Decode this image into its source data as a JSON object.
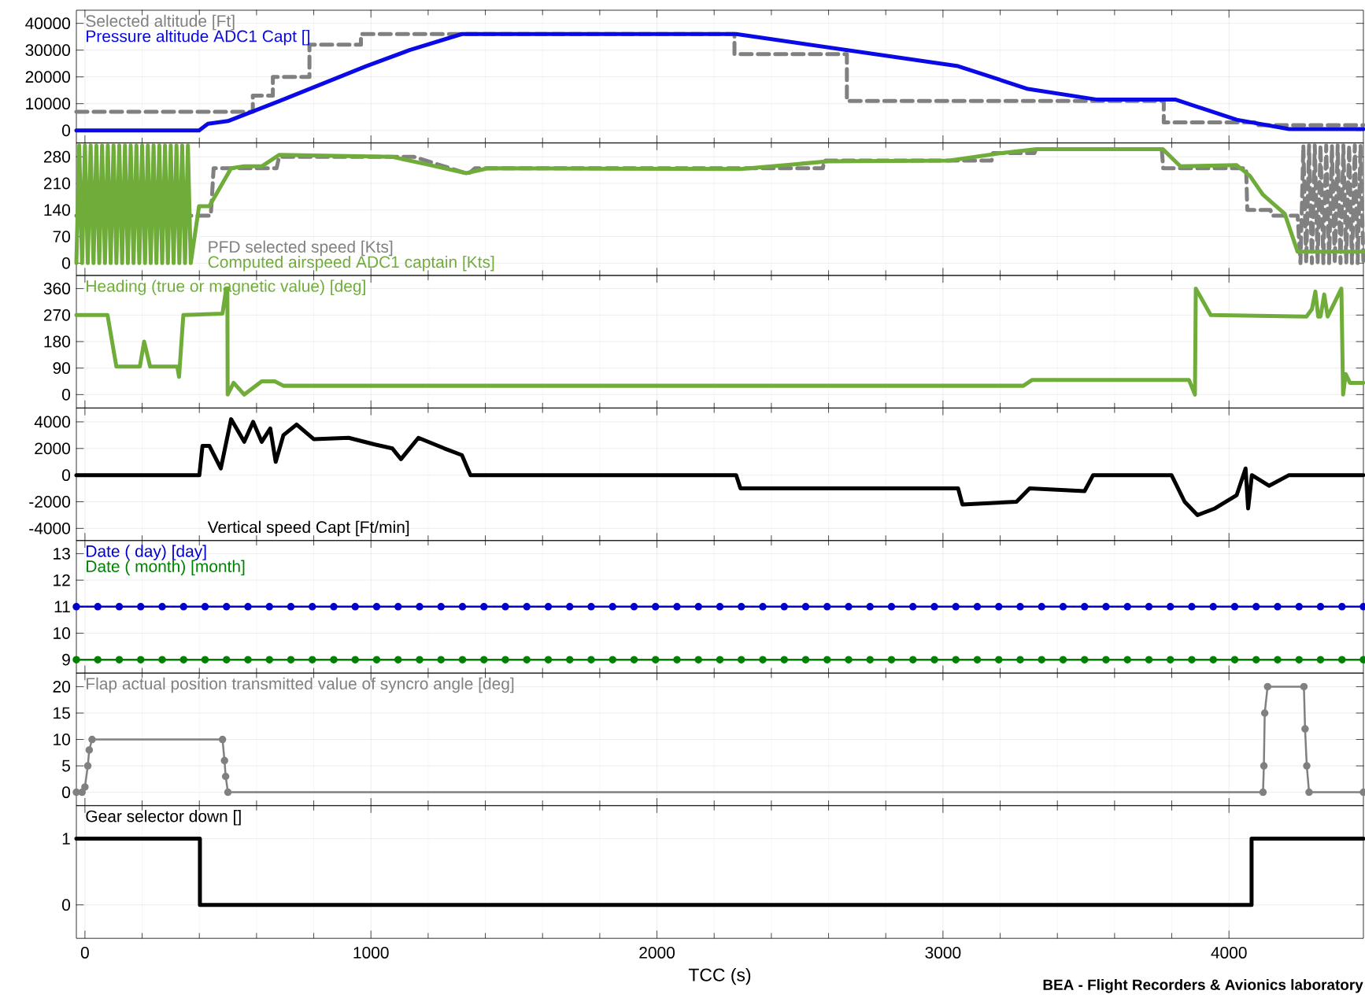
{
  "chart_data": [
    {
      "type": "line",
      "xlim": [
        -30,
        4470
      ],
      "xticks": [
        0,
        1000,
        2000,
        3000,
        4000
      ],
      "ylim": [
        -4600,
        44900
      ],
      "yticks": [
        0,
        10000,
        20000,
        30000,
        40000
      ],
      "tick_labels": "y",
      "grid": true,
      "legend": "top left",
      "series": [
        {
          "name": "Selected altitude [Ft]",
          "color": "#808080",
          "line_style": "dashed",
          "type": "step",
          "x": [
            -30,
            587,
            657,
            785,
            965,
            2271,
            2664,
            3772,
            4100,
            4470
          ],
          "values": [
            7000,
            13000,
            20000,
            32000,
            36000,
            28500,
            11000,
            3000,
            2000,
            2000
          ]
        },
        {
          "name": "Pressure altitude ADC1 Capt []",
          "color": "#0a0ae6",
          "x": [
            -30,
            399,
            430,
            500,
            680,
            983,
            1135,
            1318,
            2277,
            3053,
            3297,
            3540,
            3814,
            4027,
            4210,
            4470
          ],
          "values": [
            0,
            0,
            2500,
            3500,
            11000,
            24000,
            30000,
            36000,
            36000,
            24000,
            15500,
            11500,
            11500,
            4000,
            500,
            500
          ]
        }
      ]
    },
    {
      "type": "line",
      "xlim": [
        -30,
        4470
      ],
      "xticks": [
        0,
        1000,
        2000,
        3000,
        4000
      ],
      "ylim": [
        -32,
        317
      ],
      "yticks": [
        0,
        70,
        140,
        210,
        280
      ],
      "tick_labels": "y",
      "grid": true,
      "legend": "bottom left",
      "series": [
        {
          "name": "PFD selected speed [Kts]",
          "color": "#808080",
          "line_style": "dashed",
          "x": [
            -30,
            440,
            450,
            670,
            679,
            1150,
            1340,
            1364,
            2580,
            2585,
            3170,
            3175,
            3320,
            3325,
            3765,
            3770,
            4060,
            4064,
            4145,
            4150,
            4240,
            4250,
            4260,
            4270,
            4280,
            4290,
            4300,
            4310,
            4320,
            4330,
            4340,
            4350,
            4360,
            4370,
            4380,
            4390,
            4400,
            4410,
            4420,
            4430,
            4440,
            4450,
            4460,
            4470
          ],
          "values": [
            125,
            125,
            250,
            250,
            280,
            280,
            235,
            250,
            250,
            270,
            270,
            290,
            290,
            300,
            300,
            250,
            250,
            140,
            140,
            125,
            125,
            0,
            310,
            0,
            310,
            0,
            310,
            0,
            310,
            0,
            310,
            0,
            310,
            0,
            310,
            0,
            310,
            0,
            310,
            0,
            310,
            0,
            310,
            0
          ]
        },
        {
          "name": "Computed airspeed ADC1 captain [Kts]",
          "color": "#6fac3a",
          "x": [
            -30,
            -20,
            -10,
            0,
            10,
            20,
            30,
            40,
            50,
            60,
            70,
            80,
            90,
            100,
            110,
            120,
            130,
            140,
            150,
            160,
            170,
            180,
            190,
            200,
            210,
            220,
            230,
            240,
            250,
            260,
            270,
            280,
            290,
            300,
            310,
            320,
            330,
            340,
            350,
            360,
            370,
            399,
            435,
            511,
            557,
            618,
            679,
            1075,
            1196,
            1333,
            1409,
            2292,
            2597,
            3023,
            3205,
            3327,
            3769,
            3830,
            4027,
            4073,
            4119,
            4195,
            4240,
            4470
          ],
          "values": [
            0,
            310,
            0,
            310,
            0,
            310,
            0,
            310,
            0,
            310,
            0,
            310,
            0,
            310,
            0,
            310,
            0,
            310,
            0,
            310,
            0,
            310,
            0,
            310,
            0,
            310,
            0,
            310,
            0,
            310,
            0,
            310,
            0,
            310,
            0,
            310,
            0,
            310,
            0,
            310,
            0,
            150,
            150,
            250,
            255,
            255,
            285,
            280,
            260,
            237,
            250,
            248,
            268,
            270,
            290,
            300,
            300,
            255,
            258,
            230,
            180,
            130,
            30,
            30
          ]
        }
      ]
    },
    {
      "type": "line",
      "xlim": [
        -30,
        4470
      ],
      "xticks": [
        0,
        1000,
        2000,
        3000,
        4000
      ],
      "ylim": [
        -45,
        405
      ],
      "yticks": [
        0,
        90,
        180,
        270,
        360
      ],
      "tick_labels": "y",
      "grid": true,
      "legend": "top left",
      "series": [
        {
          "name": "Heading (true or magnetic value) [deg]",
          "color": "#6fac3a",
          "x": [
            -30,
            79,
            110,
            192,
            207,
            228,
            323,
            329,
            344,
            481,
            494,
            498,
            499,
            520,
            557,
            618,
            664,
            694,
            3281,
            3312,
            3860,
            3881,
            3884,
            3936,
            4271,
            4290,
            4302,
            4312,
            4320,
            4333,
            4345,
            4393,
            4399,
            4408,
            4423,
            4470
          ],
          "values": [
            270,
            270,
            95,
            95,
            180,
            95,
            95,
            60,
            270,
            275,
            360,
            360,
            0,
            40,
            0,
            45,
            45,
            30,
            30,
            50,
            50,
            0,
            360,
            270,
            265,
            290,
            350,
            265,
            265,
            340,
            265,
            360,
            0,
            70,
            40,
            40
          ]
        }
      ]
    },
    {
      "type": "line",
      "xlim": [
        -30,
        4470
      ],
      "xticks": [
        0,
        1000,
        2000,
        3000,
        4000
      ],
      "ylim": [
        -4900,
        5050
      ],
      "yticks": [
        -4000,
        -2000,
        0,
        2000,
        4000
      ],
      "tick_labels": "y",
      "grid": true,
      "legend": "bottom left",
      "series": [
        {
          "name": "Vertical speed Capt [Ft/min]",
          "color": "#000000",
          "x": [
            -30,
            400,
            411,
            435,
            475,
            511,
            557,
            588,
            618,
            648,
            667,
            694,
            740,
            800,
            922,
            1014,
            1075,
            1105,
            1166,
            1257,
            1318,
            1348,
            2277,
            2292,
            3053,
            3068,
            3257,
            3303,
            3495,
            3525,
            3799,
            3845,
            3890,
            3951,
            4027,
            4058,
            4067,
            4080,
            4140,
            4210,
            4470
          ],
          "values": [
            0,
            0,
            2200,
            2200,
            500,
            4200,
            2500,
            4000,
            2500,
            3500,
            1000,
            3000,
            3800,
            2700,
            2800,
            2300,
            2000,
            1200,
            2800,
            2000,
            1500,
            0,
            0,
            -1000,
            -1000,
            -2200,
            -2000,
            -1000,
            -1200,
            0,
            0,
            -2000,
            -3000,
            -2500,
            -1500,
            500,
            -2500,
            0,
            -800,
            0,
            0
          ]
        }
      ]
    },
    {
      "type": "line",
      "xlim": [
        -30,
        4470
      ],
      "xticks": [
        0,
        1000,
        2000,
        3000,
        4000
      ],
      "ylim": [
        8.5,
        13.5
      ],
      "yticks": [
        9,
        10,
        11,
        12,
        13
      ],
      "tick_labels": "y",
      "grid": true,
      "legend": "top left",
      "x": [
        -30,
        45,
        120,
        195,
        270,
        345,
        420,
        495,
        570,
        645,
        720,
        795,
        870,
        945,
        1020,
        1095,
        1170,
        1245,
        1320,
        1395,
        1470,
        1545,
        1620,
        1695,
        1770,
        1845,
        1920,
        1995,
        2070,
        2145,
        2220,
        2295,
        2370,
        2445,
        2520,
        2595,
        2670,
        2745,
        2820,
        2895,
        2970,
        3045,
        3120,
        3195,
        3270,
        3345,
        3420,
        3495,
        3570,
        3645,
        3720,
        3795,
        3870,
        3945,
        4020,
        4095,
        4170,
        4245,
        4320,
        4395,
        4470
      ],
      "series": [
        {
          "name": "Date ( day) [day]",
          "color": "#0000cc",
          "marker": "circle",
          "values": [
            11,
            11,
            11,
            11,
            11,
            11,
            11,
            11,
            11,
            11,
            11,
            11,
            11,
            11,
            11,
            11,
            11,
            11,
            11,
            11,
            11,
            11,
            11,
            11,
            11,
            11,
            11,
            11,
            11,
            11,
            11,
            11,
            11,
            11,
            11,
            11,
            11,
            11,
            11,
            11,
            11,
            11,
            11,
            11,
            11,
            11,
            11,
            11,
            11,
            11,
            11,
            11,
            11,
            11,
            11,
            11,
            11,
            11,
            11,
            11,
            11
          ]
        },
        {
          "name": "Date ( month) [month]",
          "color": "#008000",
          "marker": "circle",
          "values": [
            9,
            9,
            9,
            9,
            9,
            9,
            9,
            9,
            9,
            9,
            9,
            9,
            9,
            9,
            9,
            9,
            9,
            9,
            9,
            9,
            9,
            9,
            9,
            9,
            9,
            9,
            9,
            9,
            9,
            9,
            9,
            9,
            9,
            9,
            9,
            9,
            9,
            9,
            9,
            9,
            9,
            9,
            9,
            9,
            9,
            9,
            9,
            9,
            9,
            9,
            9,
            9,
            9,
            9,
            9,
            9,
            9,
            9,
            9,
            9,
            9
          ]
        }
      ]
    },
    {
      "type": "line",
      "xlim": [
        -30,
        4470
      ],
      "xticks": [
        0,
        1000,
        2000,
        3000,
        4000
      ],
      "ylim": [
        -2.5,
        22.6
      ],
      "yticks": [
        0,
        5,
        10,
        15,
        20
      ],
      "tick_labels": "y",
      "grid": true,
      "legend": "top left",
      "series": [
        {
          "name": "Flap actual position transmitted value of syncro angle [deg]",
          "color": "#808080",
          "marker": "circle",
          "x": [
            -30,
            -10,
            0,
            10,
            15,
            25,
            481,
            488,
            492,
            500,
            4119,
            4122,
            4125,
            4135,
            4262,
            4266,
            4272,
            4280,
            4470
          ],
          "values": [
            0,
            0,
            1,
            5,
            8,
            10,
            10,
            6,
            3,
            0,
            0,
            5,
            15,
            20,
            20,
            12,
            5,
            0,
            0
          ]
        }
      ]
    },
    {
      "type": "line",
      "xlim": [
        -30,
        4470
      ],
      "xticks": [
        0,
        1000,
        2000,
        3000,
        4000
      ],
      "ylim": [
        -0.5,
        1.5
      ],
      "yticks": [
        0,
        1
      ],
      "grid": true,
      "legend": "top left",
      "xlabel": "TCC (s)",
      "annotations": [
        "BEA -  Flight Recorders & Avionics laboratory"
      ],
      "series": [
        {
          "name": "Gear selector down []",
          "color": "#000000",
          "x": [
            -30,
            402,
            402,
            4079,
            4079,
            4470
          ],
          "values": [
            1,
            1,
            0,
            0,
            1,
            1
          ]
        }
      ]
    }
  ]
}
